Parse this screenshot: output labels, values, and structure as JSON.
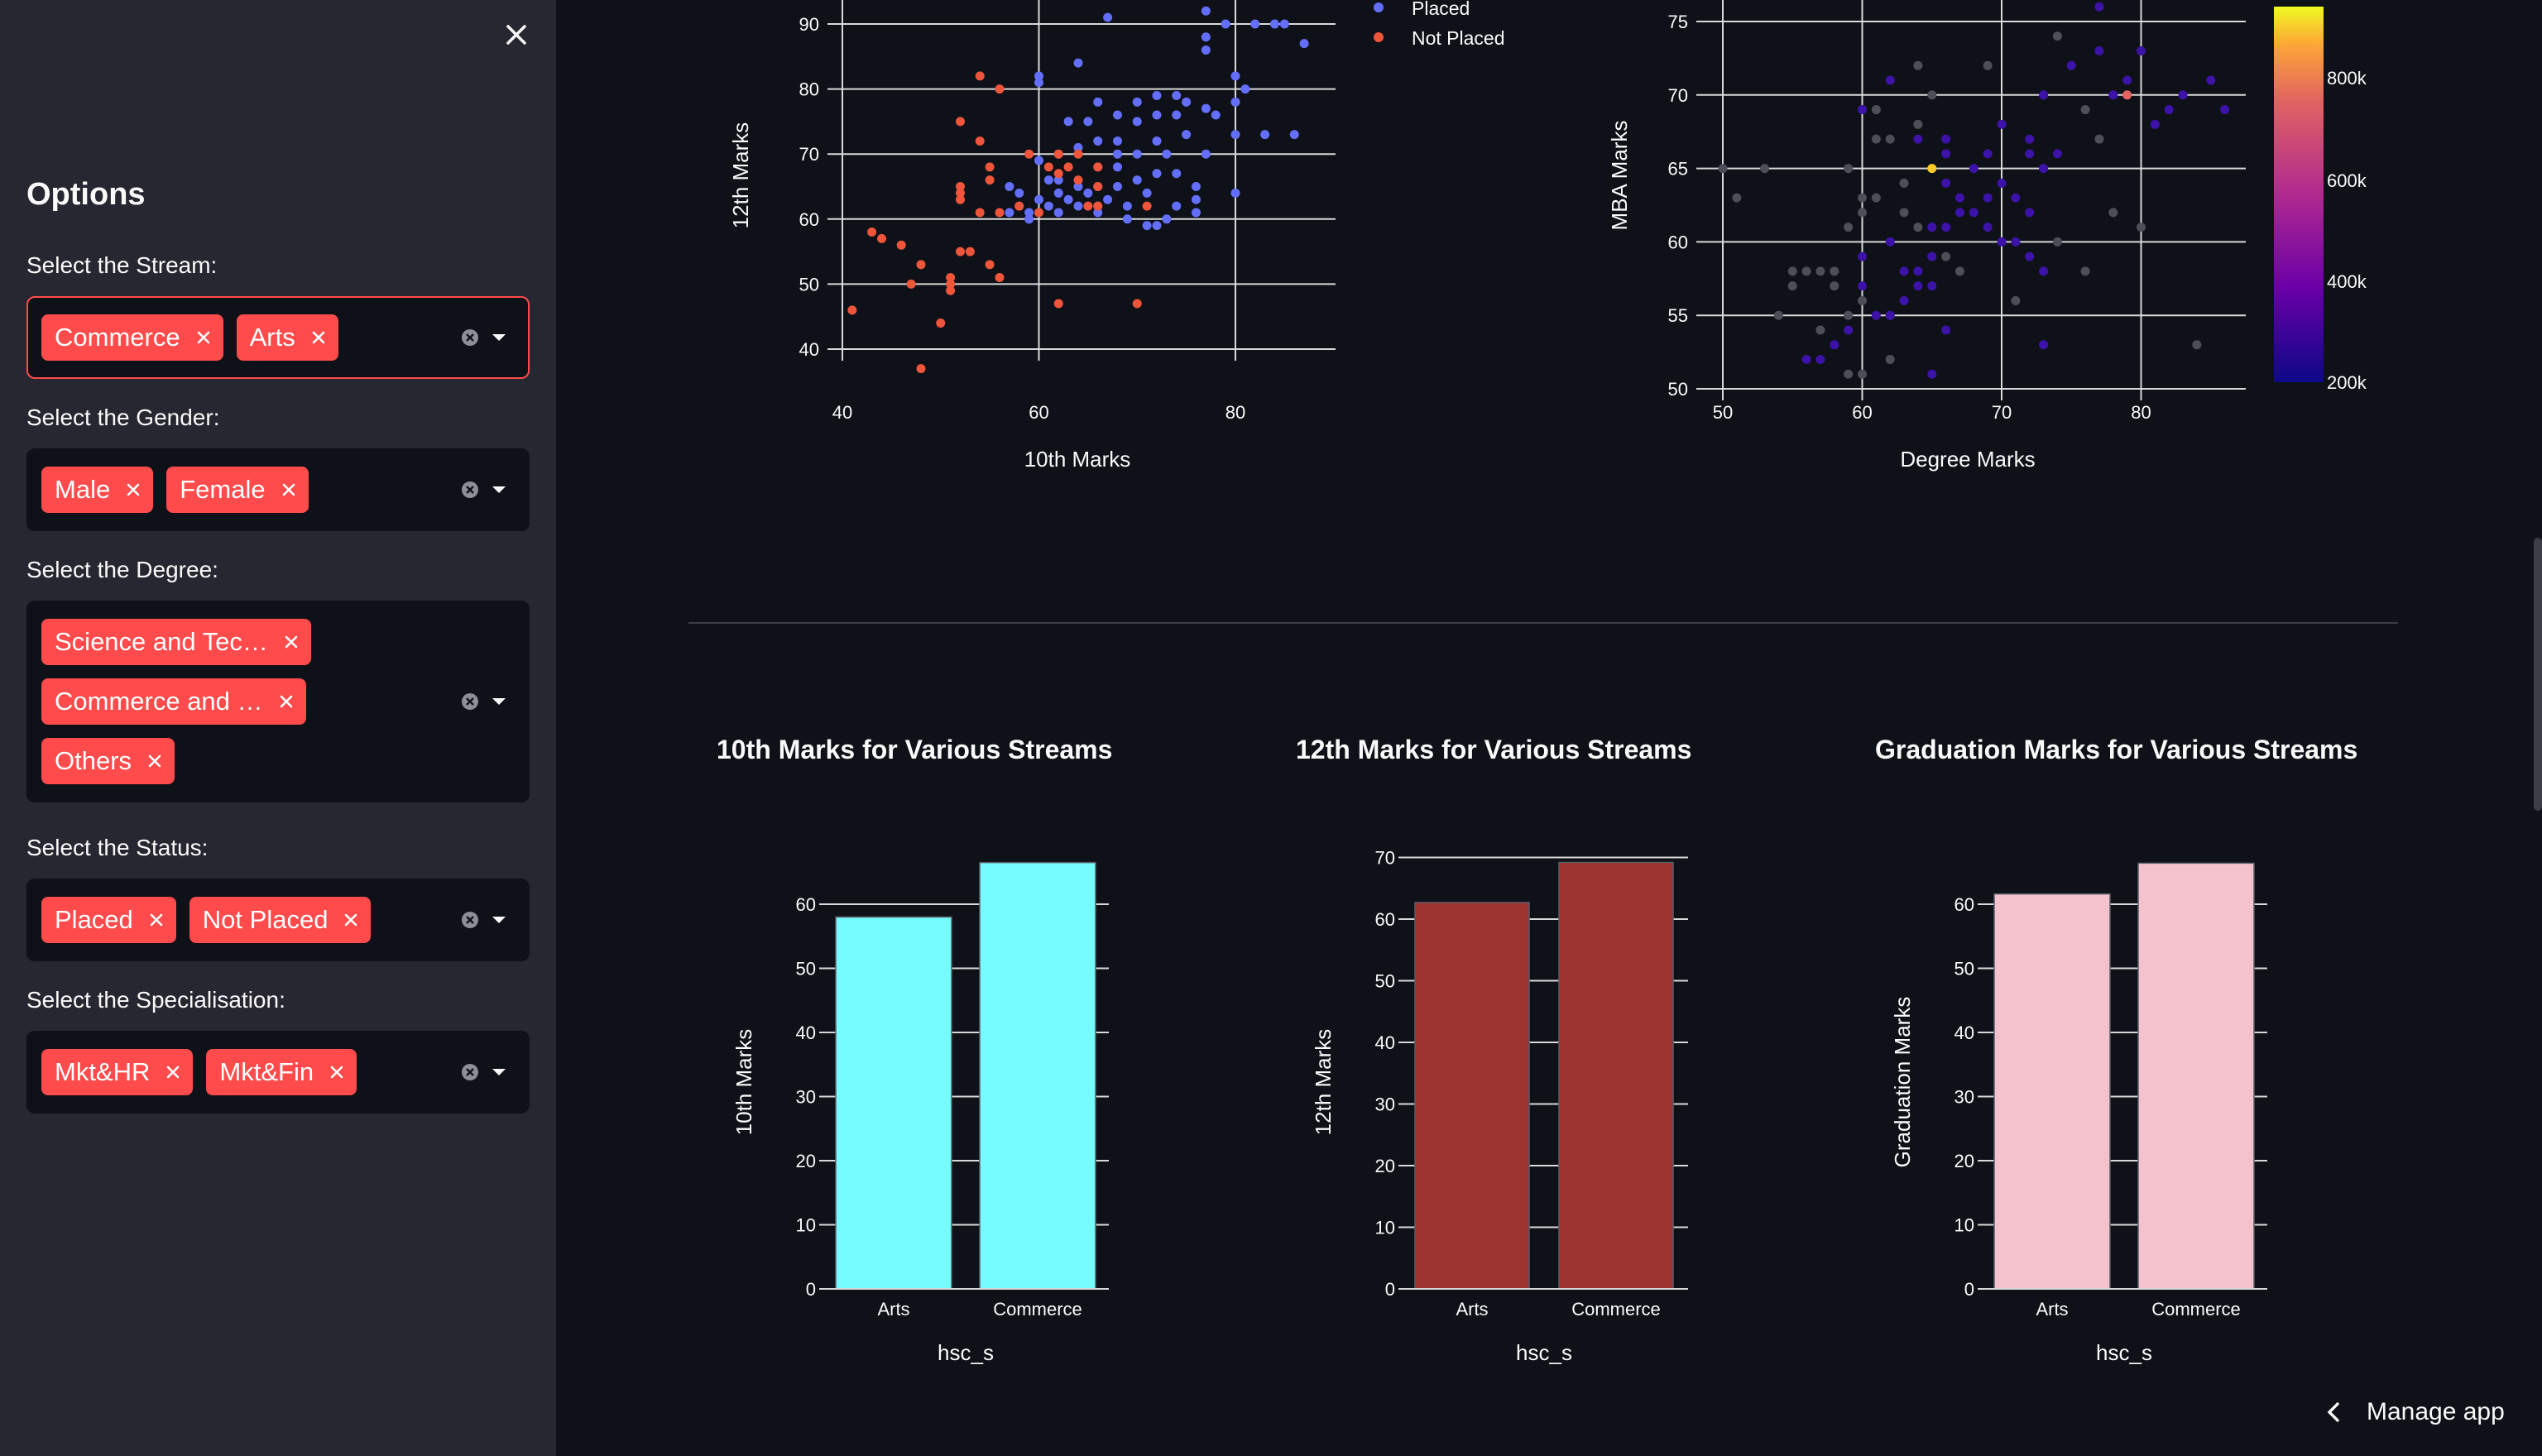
{
  "sidebar": {
    "title": "Options",
    "filters": [
      {
        "label": "Select the Stream:",
        "chips": [
          "Commerce",
          "Arts"
        ]
      },
      {
        "label": "Select the Gender:",
        "chips": [
          "Male",
          "Female"
        ]
      },
      {
        "label": "Select the Degree:",
        "chips": [
          "Science and Tec…",
          "Commerce and …",
          "Others"
        ]
      },
      {
        "label": "Select the Status:",
        "chips": [
          "Placed",
          "Not Placed"
        ]
      },
      {
        "label": "Select the Specialisation:",
        "chips": [
          "Mkt&HR",
          "Mkt&Fin"
        ]
      }
    ]
  },
  "footer": {
    "manage_app": "Manage app"
  },
  "colors": {
    "accent": "#ff4b4b",
    "placed": "#636efa",
    "not_placed": "#ef553b",
    "bar_10th": "#74fcff",
    "bar_12th": "#9b3330",
    "bar_grad": "#f4c2cc"
  },
  "chart_data": [
    {
      "type": "scatter",
      "xlabel": "10th Marks",
      "ylabel": "12th Marks",
      "xlim": [
        40,
        88
      ],
      "ylim": [
        38,
        93
      ],
      "xticks": [
        40,
        60,
        80
      ],
      "yticks": [
        40,
        50,
        60,
        70,
        80,
        90
      ],
      "legend": [
        "Placed",
        "Not Placed"
      ],
      "series": [
        {
          "name": "Placed",
          "color": "#636efa",
          "points": [
            [
              67,
              91
            ],
            [
              77,
              92
            ],
            [
              79,
              90
            ],
            [
              82,
              90
            ],
            [
              84,
              90
            ],
            [
              85,
              90
            ],
            [
              77,
              88
            ],
            [
              87,
              87
            ],
            [
              77,
              86
            ],
            [
              80,
              82
            ],
            [
              60,
              82
            ],
            [
              60,
              81
            ],
            [
              64,
              84
            ],
            [
              81,
              80
            ],
            [
              72,
              79
            ],
            [
              74,
              79
            ],
            [
              75,
              78
            ],
            [
              77,
              77
            ],
            [
              80,
              78
            ],
            [
              70,
              78
            ],
            [
              66,
              78
            ],
            [
              68,
              76
            ],
            [
              72,
              76
            ],
            [
              74,
              76
            ],
            [
              78,
              76
            ],
            [
              63,
              75
            ],
            [
              65,
              75
            ],
            [
              70,
              75
            ],
            [
              83,
              73
            ],
            [
              86,
              73
            ],
            [
              80,
              73
            ],
            [
              75,
              73
            ],
            [
              72,
              72
            ],
            [
              68,
              72
            ],
            [
              66,
              72
            ],
            [
              64,
              71
            ],
            [
              77,
              70
            ],
            [
              73,
              70
            ],
            [
              70,
              70
            ],
            [
              68,
              70
            ],
            [
              62,
              70
            ],
            [
              60,
              69
            ],
            [
              66,
              68
            ],
            [
              68,
              68
            ],
            [
              72,
              67
            ],
            [
              74,
              67
            ],
            [
              61,
              66
            ],
            [
              62,
              66
            ],
            [
              70,
              66
            ],
            [
              64,
              65
            ],
            [
              66,
              65
            ],
            [
              57,
              65
            ],
            [
              68,
              65
            ],
            [
              76,
              65
            ],
            [
              80,
              64
            ],
            [
              62,
              64
            ],
            [
              58,
              64
            ],
            [
              65,
              64
            ],
            [
              71,
              64
            ],
            [
              76,
              63
            ],
            [
              60,
              63
            ],
            [
              63,
              63
            ],
            [
              67,
              63
            ],
            [
              69,
              62
            ],
            [
              58,
              62
            ],
            [
              61,
              62
            ],
            [
              64,
              62
            ],
            [
              66,
              62
            ],
            [
              74,
              62
            ],
            [
              57,
              61
            ],
            [
              59,
              61
            ],
            [
              62,
              61
            ],
            [
              66,
              61
            ],
            [
              76,
              61
            ],
            [
              69,
              60
            ],
            [
              73,
              60
            ],
            [
              59,
              60
            ],
            [
              71,
              59
            ],
            [
              72,
              59
            ]
          ]
        },
        {
          "name": "Not Placed",
          "color": "#ef553b",
          "points": [
            [
              54,
              82
            ],
            [
              56,
              80
            ],
            [
              52,
              75
            ],
            [
              54,
              72
            ],
            [
              59,
              70
            ],
            [
              62,
              70
            ],
            [
              64,
              70
            ],
            [
              55,
              68
            ],
            [
              61,
              68
            ],
            [
              63,
              68
            ],
            [
              66,
              68
            ],
            [
              62,
              67
            ],
            [
              55,
              66
            ],
            [
              64,
              66
            ],
            [
              52,
              65
            ],
            [
              66,
              65
            ],
            [
              52,
              64
            ],
            [
              58,
              62
            ],
            [
              65,
              62
            ],
            [
              66,
              62
            ],
            [
              71,
              62
            ],
            [
              52,
              63
            ],
            [
              54,
              61
            ],
            [
              56,
              61
            ],
            [
              60,
              61
            ],
            [
              43,
              58
            ],
            [
              44,
              57
            ],
            [
              46,
              56
            ],
            [
              52,
              55
            ],
            [
              53,
              55
            ],
            [
              55,
              53
            ],
            [
              48,
              53
            ],
            [
              56,
              51
            ],
            [
              51,
              51
            ],
            [
              51,
              50
            ],
            [
              47,
              50
            ],
            [
              51,
              49
            ],
            [
              41,
              46
            ],
            [
              62,
              47
            ],
            [
              70,
              47
            ],
            [
              50,
              44
            ],
            [
              48,
              37
            ]
          ]
        }
      ]
    },
    {
      "type": "scatter",
      "xlabel": "Degree Marks",
      "ylabel": "MBA Marks",
      "xlim": [
        50,
        87
      ],
      "ylim": [
        50,
        76
      ],
      "xticks": [
        50,
        60,
        70,
        80
      ],
      "yticks": [
        50,
        55,
        60,
        65,
        70,
        75
      ],
      "colorbar": {
        "ticks": [
          "800k",
          "600k",
          "400k",
          "200k"
        ],
        "range": [
          200000,
          940000
        ]
      },
      "series": [
        {
          "name": "",
          "color": "#4c4f58",
          "points": [
            [
              50,
              65
            ],
            [
              51,
              63
            ],
            [
              53,
              65
            ],
            [
              55,
              58
            ],
            [
              56,
              58
            ],
            [
              58,
              58
            ],
            [
              59,
              65
            ],
            [
              60,
              63
            ],
            [
              60,
              69
            ],
            [
              61,
              69
            ],
            [
              61,
              67
            ],
            [
              62,
              67
            ],
            [
              64,
              72
            ],
            [
              65,
              70
            ],
            [
              64,
              68
            ],
            [
              63,
              64
            ],
            [
              61,
              63
            ],
            [
              63,
              62
            ],
            [
              64,
              61
            ],
            [
              66,
              59
            ],
            [
              65,
              59
            ],
            [
              60,
              56
            ],
            [
              62,
              55
            ],
            [
              59,
              55
            ],
            [
              54,
              55
            ],
            [
              57,
              54
            ],
            [
              58,
              57
            ],
            [
              55,
              57
            ],
            [
              59,
              61
            ],
            [
              60,
              62
            ],
            [
              69,
              72
            ],
            [
              74,
              74
            ],
            [
              76,
              69
            ],
            [
              77,
              67
            ],
            [
              78,
              62
            ],
            [
              80,
              61
            ],
            [
              74,
              60
            ],
            [
              76,
              58
            ],
            [
              67,
              58
            ],
            [
              71,
              56
            ],
            [
              62,
              52
            ],
            [
              60,
              51
            ],
            [
              59,
              51
            ],
            [
              84,
              53
            ],
            [
              57,
              58
            ]
          ]
        },
        {
          "name": "",
          "color": "#3d12a8",
          "points": [
            [
              62,
              71
            ],
            [
              60,
              69
            ],
            [
              64,
              67
            ],
            [
              66,
              67
            ],
            [
              68,
              65
            ],
            [
              69,
              66
            ],
            [
              70,
              64
            ],
            [
              71,
              63
            ],
            [
              73,
              65
            ],
            [
              74,
              66
            ],
            [
              72,
              67
            ],
            [
              70,
              68
            ],
            [
              73,
              70
            ],
            [
              75,
              72
            ],
            [
              77,
              73
            ],
            [
              79,
              71
            ],
            [
              81,
              68
            ],
            [
              78,
              70
            ],
            [
              66,
              64
            ],
            [
              67,
              62
            ],
            [
              69,
              61
            ],
            [
              70,
              60
            ],
            [
              71,
              60
            ],
            [
              72,
              59
            ],
            [
              73,
              58
            ],
            [
              65,
              59
            ],
            [
              64,
              58
            ],
            [
              65,
              57
            ],
            [
              63,
              56
            ],
            [
              62,
              55
            ],
            [
              60,
              57
            ],
            [
              61,
              55
            ],
            [
              59,
              54
            ],
            [
              58,
              53
            ],
            [
              57,
              52
            ],
            [
              60,
              59
            ],
            [
              62,
              60
            ],
            [
              63,
              58
            ],
            [
              66,
              61
            ],
            [
              68,
              62
            ],
            [
              56,
              52
            ],
            [
              65,
              51
            ],
            [
              66,
              54
            ],
            [
              72,
              66
            ],
            [
              80,
              73
            ],
            [
              82,
              69
            ],
            [
              83,
              70
            ],
            [
              85,
              71
            ],
            [
              77,
              76
            ],
            [
              86,
              69
            ],
            [
              65,
              61
            ],
            [
              64,
              57
            ],
            [
              66,
              66
            ],
            [
              67,
              63
            ],
            [
              69,
              63
            ],
            [
              72,
              62
            ],
            [
              73,
              53
            ]
          ]
        },
        {
          "name": "",
          "color": "#fdca26",
          "points": [
            [
              65,
              65
            ]
          ]
        },
        {
          "name": "",
          "color": "#e16462",
          "points": [
            [
              79,
              70
            ]
          ]
        }
      ]
    },
    {
      "type": "bar",
      "title": "10th Marks for Various Streams",
      "categories": [
        "Arts",
        "Commerce"
      ],
      "values": [
        58.0,
        66.5
      ],
      "xlabel": "hsc_s",
      "ylabel": "10th Marks",
      "ylim": [
        0,
        66.5
      ],
      "yticks": [
        0,
        10,
        20,
        30,
        40,
        50,
        60
      ]
    },
    {
      "type": "bar",
      "title": "12th Marks for Various Streams",
      "categories": [
        "Arts",
        "Commerce"
      ],
      "values": [
        62.7,
        69.2
      ],
      "xlabel": "hsc_s",
      "ylabel": "12th Marks",
      "ylim": [
        0,
        70
      ],
      "yticks": [
        0,
        10,
        20,
        30,
        40,
        50,
        60,
        70
      ]
    },
    {
      "type": "bar",
      "title": "Graduation Marks for Various Streams",
      "categories": [
        "Arts",
        "Commerce"
      ],
      "values": [
        61.6,
        66.4
      ],
      "xlabel": "hsc_s",
      "ylabel": "Graduation Marks",
      "ylim": [
        0,
        66.4
      ],
      "yticks": [
        0,
        10,
        20,
        30,
        40,
        50,
        60
      ]
    }
  ]
}
